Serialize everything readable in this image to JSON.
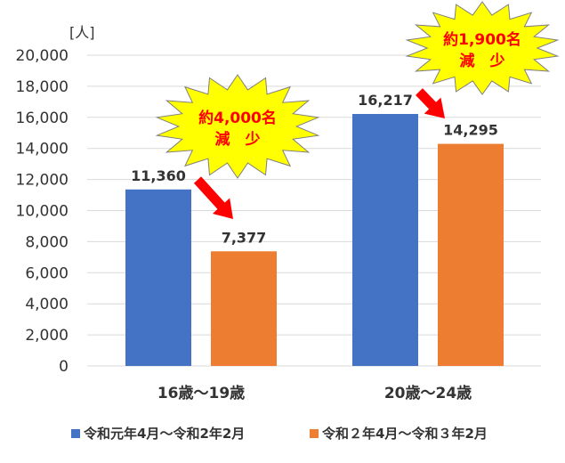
{
  "chart_data": {
    "type": "bar",
    "unit_label": "[人]",
    "categories": [
      "16歳～19歳",
      "20歳～24歳"
    ],
    "series": [
      {
        "name": "令和元年4月～令和2年2月",
        "values": [
          11360,
          16217
        ],
        "labels": [
          "11,360",
          "16,217"
        ],
        "color": "#4472c4"
      },
      {
        "name": "令和２年4月～令和３年2月",
        "values": [
          7377,
          14295
        ],
        "labels": [
          "7,377",
          "14,295"
        ],
        "color": "#ed7d31"
      }
    ],
    "ylim": [
      0,
      20000
    ],
    "yticks": [
      0,
      2000,
      4000,
      6000,
      8000,
      10000,
      12000,
      14000,
      16000,
      18000,
      20000
    ],
    "ytick_labels": [
      "0",
      "2,000",
      "4,000",
      "6,000",
      "8,000",
      "10,000",
      "12,000",
      "14,000",
      "16,000",
      "18,000",
      "20,000"
    ],
    "grid": true,
    "legend_position": "bottom",
    "annotations": [
      {
        "line1": "約4,000名",
        "line2": "減　少",
        "category": "16歳～19歳"
      },
      {
        "line1": "約1,900名",
        "line2": "減　少",
        "category": "20歳～24歳"
      }
    ],
    "burst_color": "#ffff00",
    "arrow_color": "#ff0000"
  }
}
